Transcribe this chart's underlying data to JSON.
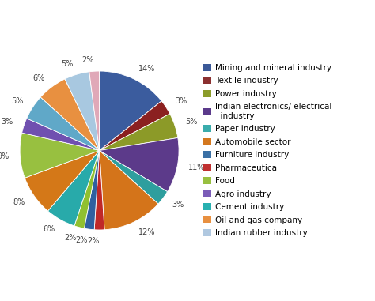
{
  "sizes": [
    14,
    3,
    5,
    11,
    3,
    12,
    2,
    2,
    2,
    6,
    8,
    9,
    3,
    5,
    6,
    5,
    2
  ],
  "slice_colors": [
    "#3B5998",
    "#8B3030",
    "#8B9C2A",
    "#5B3A8B",
    "#3AACAC",
    "#D4781E",
    "#C03030",
    "#3A70A5",
    "#98C040",
    "#28B0B0",
    "#E07818",
    "#98C040",
    "#7B5CB8",
    "#70A8C0",
    "#E89040",
    "#B0C8E0",
    "#E0A0B0"
  ],
  "legend_labels": [
    "Mining and mineral industry",
    "Textile industry",
    "Power industry",
    "Indian electronics/ electrical\n  industry",
    "Paper industry",
    "Automobile sector",
    "Furniture industry",
    "Pharmaceutical",
    "Food",
    "Agro industry",
    "Cement industry",
    "Oil and gas company",
    "Indian rubber industry"
  ],
  "legend_colors": [
    "#3B5998",
    "#8B3030",
    "#8B9C2A",
    "#5B3A8B",
    "#3AACAC",
    "#D4781E",
    "#3A70A5",
    "#C03030",
    "#98C040",
    "#7B5CB8",
    "#28B0B0",
    "#E89040",
    "#B0C8E0"
  ],
  "background_color": "#ffffff",
  "label_fontsize": 7,
  "legend_fontsize": 7.5
}
